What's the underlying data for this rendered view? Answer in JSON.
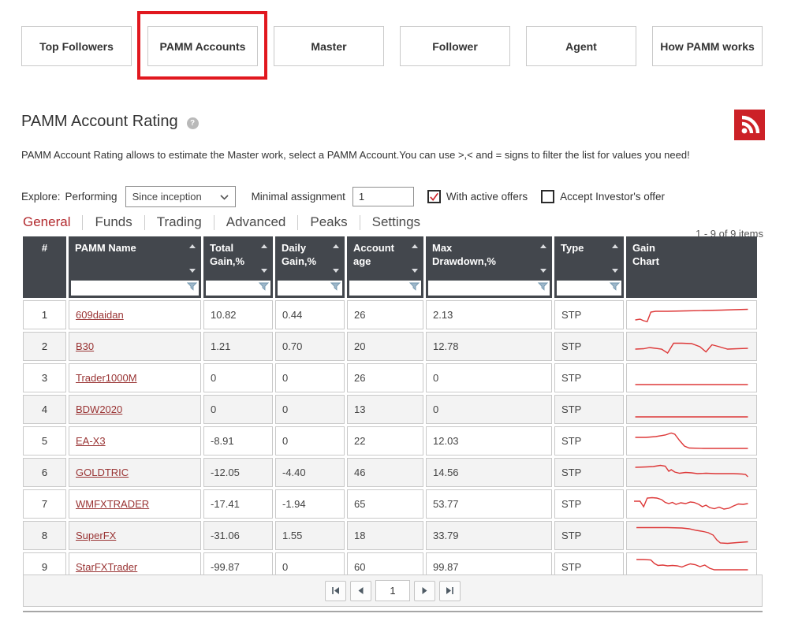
{
  "nav": {
    "items": [
      {
        "label": "Top Followers",
        "highlighted": false
      },
      {
        "label": "PAMM Accounts",
        "highlighted": true
      },
      {
        "label": "Master",
        "highlighted": false
      },
      {
        "label": "Follower",
        "highlighted": false
      },
      {
        "label": "Agent",
        "highlighted": false
      },
      {
        "label": "How PAMM works",
        "highlighted": false
      }
    ]
  },
  "header": {
    "title": "PAMM Account Rating",
    "help_icon": "?",
    "description": "PAMM Account Rating allows to estimate the Master work, select a PAMM Account.You can use >,< and = signs to filter the list for values you need!"
  },
  "filters": {
    "explore_label": "Explore:",
    "mode_label": "Performing",
    "period_select": {
      "value": "Since inception"
    },
    "minimal_assignment_label": "Minimal assignment",
    "minimal_assignment_value": "1",
    "checkboxes": [
      {
        "label": "With active offers",
        "checked": true
      },
      {
        "label": "Accept Investor's offer",
        "checked": false
      }
    ]
  },
  "tabs": {
    "items": [
      {
        "label": "General",
        "active": true
      },
      {
        "label": "Funds",
        "active": false
      },
      {
        "label": "Trading",
        "active": false
      },
      {
        "label": "Advanced",
        "active": false
      },
      {
        "label": "Peaks",
        "active": false
      },
      {
        "label": "Settings",
        "active": false
      }
    ],
    "items_count": "1 - 9 of 9 items"
  },
  "table": {
    "columns": [
      {
        "line1": "#",
        "line2": ""
      },
      {
        "line1": "PAMM Name",
        "line2": ""
      },
      {
        "line1": "Total",
        "line2": "Gain,%"
      },
      {
        "line1": "Daily",
        "line2": "Gain,%"
      },
      {
        "line1": "Account",
        "line2": "age"
      },
      {
        "line1": "Max",
        "line2": "Drawdown,%"
      },
      {
        "line1": "Type",
        "line2": ""
      },
      {
        "line1": "Gain",
        "line2": "Chart"
      }
    ],
    "rows": [
      {
        "num": "1",
        "name": "609daidan",
        "total_gain": "10.82",
        "daily_gain": "0.44",
        "account_age": "26",
        "max_drawdown": "2.13",
        "type": "STP",
        "spark": [
          [
            3,
            22
          ],
          [
            7,
            21
          ],
          [
            10,
            23
          ],
          [
            13,
            24
          ],
          [
            16,
            12
          ],
          [
            20,
            11
          ],
          [
            30,
            11
          ],
          [
            45,
            10.5
          ],
          [
            60,
            10
          ],
          [
            75,
            9.5
          ],
          [
            85,
            9
          ],
          [
            97,
            8.5
          ]
        ]
      },
      {
        "num": "2",
        "name": "B30",
        "total_gain": "1.21",
        "daily_gain": "0.70",
        "account_age": "20",
        "max_drawdown": "12.78",
        "type": "STP",
        "spark": [
          [
            3,
            19
          ],
          [
            10,
            18.5
          ],
          [
            15,
            17
          ],
          [
            20,
            18
          ],
          [
            25,
            19
          ],
          [
            30,
            24
          ],
          [
            35,
            11.5
          ],
          [
            42,
            11.5
          ],
          [
            50,
            12
          ],
          [
            57,
            16
          ],
          [
            62,
            22.5
          ],
          [
            67,
            13.5
          ],
          [
            72,
            15.5
          ],
          [
            80,
            19
          ],
          [
            88,
            18.5
          ],
          [
            97,
            18
          ]
        ]
      },
      {
        "num": "3",
        "name": "Trader1000M",
        "total_gain": "0",
        "daily_gain": "0",
        "account_age": "26",
        "max_drawdown": "0",
        "type": "STP",
        "spark": [
          [
            3,
            24
          ],
          [
            97,
            24
          ]
        ]
      },
      {
        "num": "4",
        "name": "BDW2020",
        "total_gain": "0",
        "daily_gain": "0",
        "account_age": "13",
        "max_drawdown": "0",
        "type": "STP",
        "spark": [
          [
            3,
            25
          ],
          [
            97,
            25
          ]
        ]
      },
      {
        "num": "5",
        "name": "EA-X3",
        "total_gain": "-8.91",
        "daily_gain": "0",
        "account_age": "22",
        "max_drawdown": "12.03",
        "type": "STP",
        "spark": [
          [
            3,
            11
          ],
          [
            12,
            11
          ],
          [
            20,
            10
          ],
          [
            28,
            8
          ],
          [
            33,
            5.5
          ],
          [
            36,
            7
          ],
          [
            40,
            15
          ],
          [
            44,
            22
          ],
          [
            48,
            24.5
          ],
          [
            60,
            25
          ],
          [
            80,
            25
          ],
          [
            97,
            25
          ]
        ]
      },
      {
        "num": "6",
        "name": "GOLDTRIC",
        "total_gain": "-12.05",
        "daily_gain": "-4.40",
        "account_age": "46",
        "max_drawdown": "14.56",
        "type": "STP",
        "spark": [
          [
            3,
            9
          ],
          [
            12,
            8.5
          ],
          [
            18,
            8
          ],
          [
            24,
            6.5
          ],
          [
            28,
            7.5
          ],
          [
            31,
            14
          ],
          [
            33,
            12
          ],
          [
            36,
            15
          ],
          [
            40,
            16.5
          ],
          [
            45,
            15.5
          ],
          [
            50,
            16
          ],
          [
            55,
            17
          ],
          [
            62,
            16.5
          ],
          [
            70,
            17
          ],
          [
            78,
            17
          ],
          [
            85,
            17
          ],
          [
            92,
            17.5
          ],
          [
            95,
            18
          ],
          [
            97,
            21
          ]
        ]
      },
      {
        "num": "7",
        "name": "WMFXTRADER",
        "total_gain": "-17.41",
        "daily_gain": "-1.94",
        "account_age": "65",
        "max_drawdown": "53.77",
        "type": "STP",
        "spark": [
          [
            2,
            12
          ],
          [
            7,
            12
          ],
          [
            10,
            19
          ],
          [
            13,
            8
          ],
          [
            17,
            7.5
          ],
          [
            21,
            8
          ],
          [
            25,
            10
          ],
          [
            28,
            13.5
          ],
          [
            31,
            15
          ],
          [
            34,
            13.5
          ],
          [
            37,
            16
          ],
          [
            41,
            14
          ],
          [
            45,
            15
          ],
          [
            49,
            13
          ],
          [
            52,
            13.5
          ],
          [
            56,
            16
          ],
          [
            59,
            19
          ],
          [
            62,
            17
          ],
          [
            65,
            20
          ],
          [
            69,
            21.5
          ],
          [
            73,
            19.5
          ],
          [
            77,
            22
          ],
          [
            81,
            21
          ],
          [
            85,
            18
          ],
          [
            89,
            15.5
          ],
          [
            93,
            16
          ],
          [
            97,
            15
          ]
        ]
      },
      {
        "num": "8",
        "name": "SuperFX",
        "total_gain": "-31.06",
        "daily_gain": "1.55",
        "account_age": "18",
        "max_drawdown": "33.79",
        "type": "STP",
        "spark": [
          [
            4,
            5.5
          ],
          [
            15,
            5.5
          ],
          [
            30,
            5.5
          ],
          [
            42,
            6
          ],
          [
            48,
            7
          ],
          [
            54,
            9
          ],
          [
            60,
            10.5
          ],
          [
            64,
            12
          ],
          [
            68,
            15
          ],
          [
            71,
            21
          ],
          [
            74,
            25
          ],
          [
            80,
            25.5
          ],
          [
            88,
            24.5
          ],
          [
            97,
            23.5
          ]
        ]
      },
      {
        "num": "9",
        "name": "StarFXTrader",
        "total_gain": "-99.87",
        "daily_gain": "0",
        "account_age": "60",
        "max_drawdown": "99.87",
        "type": "STP",
        "spark": [
          [
            4,
            6
          ],
          [
            10,
            6
          ],
          [
            16,
            6.5
          ],
          [
            19,
            11
          ],
          [
            22,
            13.5
          ],
          [
            26,
            13
          ],
          [
            30,
            14
          ],
          [
            34,
            13.5
          ],
          [
            38,
            14
          ],
          [
            42,
            15.5
          ],
          [
            45,
            13.5
          ],
          [
            49,
            11.5
          ],
          [
            53,
            12.5
          ],
          [
            57,
            15
          ],
          [
            61,
            13
          ],
          [
            65,
            17
          ],
          [
            69,
            19
          ],
          [
            75,
            19
          ],
          [
            85,
            19
          ],
          [
            97,
            19
          ]
        ]
      }
    ]
  },
  "pagination": {
    "page": "1"
  },
  "colors": {
    "annotation_red": "#e1181f",
    "rss_red": "#cc2127",
    "check_red": "#cc2127",
    "header_bg": "#43474d",
    "tab_active": "#b22a2e",
    "link_red": "#993333",
    "spark_red": "#dd3838",
    "alt_row": "#f3f3f3"
  }
}
